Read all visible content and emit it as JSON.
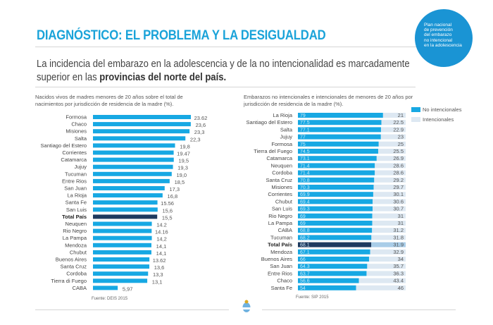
{
  "header": {
    "title": "DIAGNÓSTICO: EL PROBLEMA Y LA DESIGUALDAD",
    "subtitle_part1": "La incidencia del embarazo en la adolescencia y de la no intencionalidad es marcadamente superior en las ",
    "subtitle_bold": "provincias del norte del país."
  },
  "badge": {
    "lines": [
      "Plan nacional",
      "de prevención",
      "del embarazo",
      "no intencional",
      "en la adolescencia"
    ]
  },
  "colors": {
    "accent": "#1aa3d9",
    "bar": "#17a8e3",
    "total_bar": "#1e3a5f",
    "intencional": "#dde8f2",
    "badge": "#1a94d4"
  },
  "chart_data": [
    {
      "type": "bar",
      "orientation": "horizontal",
      "title": "Nacidos vivos de madres menores de 20 años sobre el total de nacimientos por jurisdicción de residencia de la madre (%).",
      "source": "Fuente: DEIS 2015",
      "categories": [
        "Formosa",
        "Chaco",
        "Misiones",
        "Salta",
        "Santiago del Estero",
        "Corrientes",
        "Catamarca",
        "Jujuy",
        "Tucuman",
        "Entre Rios",
        "San Juan",
        "La Rioja",
        "Santa Fe",
        "San Luis",
        "Total País",
        "Neuquen",
        "Rio Negro",
        "La Pampa",
        "Mendoza",
        "Chubut",
        "Buenos Aires",
        "Santa Cruz",
        "Cordoba",
        "Tierra di Fuego",
        "CABA"
      ],
      "value_labels": [
        "23.62",
        "23,6",
        "23,3",
        "22,3",
        "19,8",
        "19.47",
        "19,5",
        "19,3",
        "19,0",
        "18,5",
        "17,3",
        "16,8",
        "15.56",
        "15,6",
        "15,5",
        "14.2",
        "14.16",
        "14,2",
        "14,1",
        "14,1",
        "13.62",
        "13,6",
        "13,3",
        "13,1",
        "5,97"
      ],
      "values": [
        23.62,
        23.6,
        23.3,
        22.3,
        19.8,
        19.47,
        19.5,
        19.3,
        19.0,
        18.5,
        17.3,
        16.8,
        15.56,
        15.6,
        15.5,
        14.2,
        14.16,
        14.2,
        14.1,
        14.1,
        13.62,
        13.6,
        13.3,
        13.1,
        5.97
      ],
      "highlight": "Total País",
      "xlim": [
        0,
        25
      ],
      "grid": false
    },
    {
      "type": "bar",
      "orientation": "horizontal",
      "stacked": true,
      "title": "Embarazos no intencionales e intencionales de menores de 20 años por jurisdicción de residencia de la madre (%).",
      "source": "Fuente: SIP 2015",
      "legend": [
        "No intencionales",
        "Intencionales"
      ],
      "legend_position": "right",
      "categories": [
        "La Rioja",
        "Santiago del Estero",
        "Salta",
        "Jujuy",
        "Formosa",
        "Tierra del Fuego",
        "Catamarca",
        "Neuquen",
        "Cordoba",
        "Santa Cruz",
        "Misiones",
        "Corrientes",
        "Chubut",
        "San Luis",
        "Rio Negro",
        "La Pampa",
        "CABA",
        "Tucuman",
        "Total País",
        "Mendoza",
        "Buenos Aires",
        "San Juan",
        "Entre Rios",
        "Chaco",
        "Santa Fe"
      ],
      "series": [
        {
          "name": "No intencionales",
          "values": [
            79,
            77.5,
            77.1,
            77,
            75,
            74.5,
            73.1,
            71.4,
            71.4,
            70.8,
            70.3,
            69.9,
            69.4,
            69.3,
            69,
            69,
            68.8,
            68.2,
            68.1,
            67.1,
            66,
            64.3,
            63.7,
            56.6,
            54
          ]
        },
        {
          "name": "Intencionales",
          "values": [
            21,
            22.5,
            22.9,
            23,
            25,
            25.5,
            26.9,
            28.6,
            28.6,
            29.2,
            29.7,
            30.1,
            30.6,
            30.7,
            31,
            31,
            31.2,
            31.8,
            31.9,
            32.9,
            34,
            35.7,
            36.3,
            43.4,
            46
          ]
        }
      ],
      "highlight": "Total País",
      "xlim": [
        0,
        100
      ],
      "grid": false
    }
  ]
}
